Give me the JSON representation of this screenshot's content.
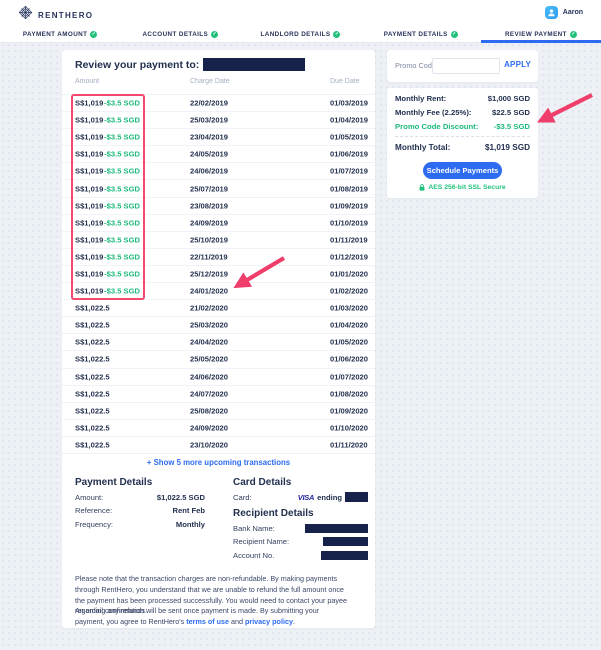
{
  "colors": {
    "brand_navy": "#25335c",
    "accent_blue": "#2d6bf0",
    "success_green": "#21c17c",
    "discount_green": "#1db97b",
    "annotation_pink": "#ef3e6b",
    "background": "#edf1f5"
  },
  "header": {
    "brand": "RENTHERO",
    "user": "Aaron"
  },
  "steps": [
    {
      "label": "PAYMENT AMOUNT"
    },
    {
      "label": "ACCOUNT DETAILS"
    },
    {
      "label": "LANDLORD DETAILS"
    },
    {
      "label": "PAYMENT DETAILS"
    },
    {
      "label": "REVIEW PAYMENT"
    }
  ],
  "review": {
    "title": "Review your payment to:"
  },
  "table": {
    "headers": {
      "amount": "Amount",
      "charge": "Charge Date",
      "due": "Due Date"
    },
    "rows": [
      {
        "amount": "S$1,019",
        "discount": "-$3.5 SGD",
        "charge": "22/02/2019",
        "due": "01/03/2019"
      },
      {
        "amount": "S$1,019",
        "discount": "-$3.5 SGD",
        "charge": "25/03/2019",
        "due": "01/04/2019"
      },
      {
        "amount": "S$1,019",
        "discount": "-$3.5 SGD",
        "charge": "23/04/2019",
        "due": "01/05/2019"
      },
      {
        "amount": "S$1,019",
        "discount": "-$3.5 SGD",
        "charge": "24/05/2019",
        "due": "01/06/2019"
      },
      {
        "amount": "S$1,019",
        "discount": "-$3.5 SGD",
        "charge": "24/06/2019",
        "due": "01/07/2019"
      },
      {
        "amount": "S$1,019",
        "discount": "-$3.5 SGD",
        "charge": "25/07/2019",
        "due": "01/08/2019"
      },
      {
        "amount": "S$1,019",
        "discount": "-$3.5 SGD",
        "charge": "23/08/2019",
        "due": "01/09/2019"
      },
      {
        "amount": "S$1,019",
        "discount": "-$3.5 SGD",
        "charge": "24/09/2019",
        "due": "01/10/2019"
      },
      {
        "amount": "S$1,019",
        "discount": "-$3.5 SGD",
        "charge": "25/10/2019",
        "due": "01/11/2019"
      },
      {
        "amount": "S$1,019",
        "discount": "-$3.5 SGD",
        "charge": "22/11/2019",
        "due": "01/12/2019"
      },
      {
        "amount": "S$1,019",
        "discount": "-$3.5 SGD",
        "charge": "25/12/2019",
        "due": "01/01/2020"
      },
      {
        "amount": "S$1,019",
        "discount": "-$3.5 SGD",
        "charge": "24/01/2020",
        "due": "01/02/2020"
      },
      {
        "amount": "S$1,022.5",
        "discount": "",
        "charge": "21/02/2020",
        "due": "01/03/2020"
      },
      {
        "amount": "S$1,022.5",
        "discount": "",
        "charge": "25/03/2020",
        "due": "01/04/2020"
      },
      {
        "amount": "S$1,022.5",
        "discount": "",
        "charge": "24/04/2020",
        "due": "01/05/2020"
      },
      {
        "amount": "S$1,022.5",
        "discount": "",
        "charge": "25/05/2020",
        "due": "01/06/2020"
      },
      {
        "amount": "S$1,022.5",
        "discount": "",
        "charge": "24/06/2020",
        "due": "01/07/2020"
      },
      {
        "amount": "S$1,022.5",
        "discount": "",
        "charge": "24/07/2020",
        "due": "01/08/2020"
      },
      {
        "amount": "S$1,022.5",
        "discount": "",
        "charge": "25/08/2020",
        "due": "01/09/2020"
      },
      {
        "amount": "S$1,022.5",
        "discount": "",
        "charge": "24/09/2020",
        "due": "01/10/2020"
      },
      {
        "amount": "S$1,022.5",
        "discount": "",
        "charge": "23/10/2020",
        "due": "01/11/2020"
      }
    ],
    "show_more": "+ Show 5 more upcoming transactions"
  },
  "payment_details": {
    "heading": "Payment Details",
    "amount_label": "Amount:",
    "amount_value": "$1,022.5 SGD",
    "reference_label": "Reference:",
    "reference_value": "Rent Feb",
    "frequency_label": "Frequency:",
    "frequency_value": "Monthly"
  },
  "card_details": {
    "heading": "Card Details",
    "card_label": "Card:",
    "brand": "VISA",
    "ending": "ending"
  },
  "recipient_details": {
    "heading": "Recipient Details",
    "bank_label": "Bank Name:",
    "name_label": "Recipient Name:",
    "account_label": "Account No."
  },
  "notes": {
    "p1": "Please note that the transaction charges are non-refundable. By making payments through RentHero, you understand that we are unable to refund the full amount once the payment has been processed successfully. You would need to contact your payee regarding any refunds.",
    "p2": "An email confirmation will be sent once payment is made. By submitting your payment, you agree to RentHero's",
    "terms_link": "terms of use",
    "and_text": "and",
    "privacy_link": "privacy policy",
    "period": "."
  },
  "promo": {
    "label": "Promo Code:",
    "apply": "APPLY"
  },
  "summary": {
    "rent_label": "Monthly Rent:",
    "rent_value": "$1,000 SGD",
    "fee_label": "Monthly Fee (2.25%):",
    "fee_value": "$22.5 SGD",
    "discount_label": "Promo Code Discount:",
    "discount_value": "-$3.5 SGD",
    "total_label": "Monthly Total:",
    "total_value": "$1,019 SGD",
    "button": "Schedule Payments",
    "ssl": "AES 256-bit SSL Secure"
  }
}
